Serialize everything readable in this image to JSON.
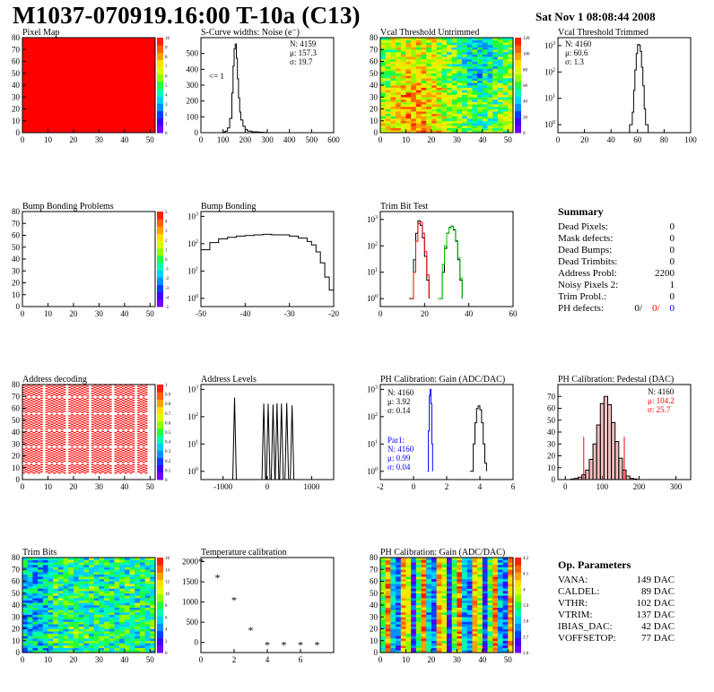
{
  "header": {
    "title": "M1037-070919.16:00 T-10a (C13)",
    "date": "Sat Nov  1 08:08:44 2008"
  },
  "colors": {
    "hist_line": "#000000",
    "red": "#ff0000",
    "green": "#00c000",
    "blue": "#0000ff",
    "pedestal_fill": "#e06060"
  },
  "panels": {
    "pixel_map": {
      "title": "Pixel Map",
      "palette_ticks": [
        "0",
        "1",
        "2",
        "3",
        "4",
        "5",
        "6",
        "7",
        "8",
        "9",
        "10"
      ],
      "fill": "#ff0000"
    },
    "scurve": {
      "title": "S-Curve widths: Noise (e⁻)",
      "stats": [
        "N: 4159",
        "μ: 157.3",
        "σ: 19.7"
      ],
      "underflow_label": "<= 1"
    },
    "vcal_untrimmed": {
      "title": "Vcal Threshold Untrimmed",
      "palette_ticks": [
        "0",
        "20",
        "40",
        "60",
        "80",
        "100",
        "120"
      ]
    },
    "vcal_trimmed": {
      "title": "Vcal Threshold Trimmed",
      "stats": [
        "N: 4160",
        "μ: 60.6",
        "σ:  1.3"
      ]
    },
    "bump_problems": {
      "title": "Bump Bonding Problems",
      "palette_ticks": [
        "-5",
        "-4",
        "-3",
        "-2",
        "-1",
        "0",
        "1",
        "2",
        "3",
        "4",
        "5"
      ]
    },
    "bump_bonding": {
      "title": "Bump Bonding"
    },
    "trim_bit_test": {
      "title": "Trim Bit Test"
    },
    "address_decoding": {
      "title": "Address decoding",
      "palette_ticks": [
        "0",
        "0.1",
        "0.2",
        "0.3",
        "0.4",
        "0.5",
        "0.6",
        "0.7",
        "0.8",
        "0.9",
        "1"
      ]
    },
    "address_levels": {
      "title": "Address Levels"
    },
    "ph_gain": {
      "title": "PH Calibration: Gain (ADC/DAC)",
      "stats": [
        "N: 4160",
        "μ: 3.92",
        "σ: 0.14"
      ],
      "par1": [
        "Par1:",
        "N: 4160",
        "μ: 0.99",
        "σ: 0.04"
      ]
    },
    "ph_pedestal": {
      "title": "PH Calibration: Pedestal (DAC)",
      "stats": [
        "N: 4160",
        "μ: 104.2",
        "σ: 25.7"
      ]
    },
    "trim_bits": {
      "title": "Trim Bits",
      "palette_ticks": [
        "0",
        "2",
        "4",
        "6",
        "8",
        "10",
        "12",
        "14",
        "16"
      ]
    },
    "temperature": {
      "title": "Temperature calibration"
    },
    "ph_gain_map": {
      "title": "PH Calibration: Gain (ADC/DAC)",
      "palette_ticks": [
        "3.6",
        "3.7",
        "3.8",
        "3.9",
        "4",
        "4.1",
        "4.2"
      ]
    }
  },
  "summary": {
    "title": "Summary",
    "rows": [
      {
        "label": "Dead Pixels:",
        "value": "0"
      },
      {
        "label": "Mask defects:",
        "value": "0"
      },
      {
        "label": "Dead Bumps:",
        "value": "0"
      },
      {
        "label": "Dead Trimbits:",
        "value": "0"
      },
      {
        "label": "Address Probl:",
        "value": "2200"
      },
      {
        "label": "Noisy Pixels 2:",
        "value": "1"
      },
      {
        "label": "Trim Probl.:",
        "value": "0"
      }
    ],
    "ph_defects": {
      "label": "PH defects:",
      "v1": "0/",
      "v2": "0/",
      "v3": "0"
    }
  },
  "op_parameters": {
    "title": "Op. Parameters",
    "rows": [
      {
        "label": "VANA:",
        "value": "149 DAC"
      },
      {
        "label": "CALDEL:",
        "value": "89 DAC"
      },
      {
        "label": "VTHR:",
        "value": "102 DAC"
      },
      {
        "label": "VTRIM:",
        "value": "137 DAC"
      },
      {
        "label": "IBIAS_DAC:",
        "value": "42 DAC"
      },
      {
        "label": "VOFFSETOP:",
        "value": "77 DAC"
      }
    ]
  },
  "chart_data": [
    {
      "id": "pixel_map",
      "type": "heatmap",
      "title": "Pixel Map",
      "xlim": [
        0,
        52
      ],
      "ylim": [
        0,
        80
      ],
      "xticks": [
        0,
        10,
        20,
        30,
        40,
        50
      ],
      "yticks": [
        0,
        10,
        20,
        30,
        40,
        50,
        60,
        70,
        80
      ],
      "value": 10,
      "zlim": [
        0,
        10
      ]
    },
    {
      "id": "scurve",
      "type": "line",
      "title": "S-Curve widths: Noise (e⁻)",
      "xlim": [
        0,
        600
      ],
      "ylim": [
        0,
        600
      ],
      "xticks": [
        0,
        100,
        200,
        300,
        400,
        500,
        600
      ],
      "yticks": [
        0,
        100,
        200,
        300,
        400,
        500
      ],
      "x": [
        0,
        80,
        100,
        110,
        120,
        130,
        140,
        145,
        150,
        155,
        160,
        165,
        170,
        175,
        180,
        190,
        200,
        210,
        230,
        260,
        280,
        300,
        600
      ],
      "y": [
        0,
        0,
        4,
        10,
        30,
        90,
        250,
        420,
        530,
        560,
        470,
        340,
        220,
        130,
        80,
        40,
        20,
        10,
        5,
        3,
        1,
        0,
        0
      ]
    },
    {
      "id": "vcal_untrimmed",
      "type": "heatmap",
      "title": "Vcal Threshold Untrimmed",
      "xlim": [
        0,
        52
      ],
      "ylim": [
        0,
        80
      ],
      "xticks": [
        0,
        10,
        20,
        30,
        40,
        50
      ],
      "yticks": [
        0,
        10,
        20,
        30,
        40,
        50,
        60,
        70,
        80
      ],
      "zlim": [
        0,
        130
      ],
      "mean": 80
    },
    {
      "id": "vcal_trimmed",
      "type": "line",
      "title": "Vcal Threshold Trimmed",
      "xlim": [
        0,
        100
      ],
      "log_y": true,
      "ylim": [
        0.5,
        2000
      ],
      "xticks": [
        0,
        20,
        40,
        60,
        80,
        100
      ],
      "yticks": [
        1,
        10,
        100,
        1000
      ],
      "x": [
        50,
        54,
        56,
        57,
        58,
        59,
        60,
        61,
        62,
        63,
        64,
        65,
        66,
        68,
        100
      ],
      "y": [
        0,
        1,
        3,
        20,
        120,
        500,
        1100,
        1050,
        600,
        150,
        30,
        4,
        1,
        0,
        0
      ]
    },
    {
      "id": "bump_problems",
      "type": "heatmap",
      "title": "Bump Bonding Problems",
      "xlim": [
        0,
        52
      ],
      "ylim": [
        0,
        80
      ],
      "xticks": [
        0,
        10,
        20,
        30,
        40,
        50
      ],
      "yticks": [
        0,
        10,
        20,
        30,
        40,
        50,
        60,
        70,
        80
      ],
      "zlim": [
        -5,
        5
      ],
      "value": null
    },
    {
      "id": "bump_bonding",
      "type": "line",
      "title": "Bump Bonding",
      "xlim": [
        -50,
        -20
      ],
      "log_y": true,
      "ylim": [
        0.5,
        1500
      ],
      "xticks": [
        -50,
        -40,
        -30,
        -20
      ],
      "yticks": [
        1,
        10,
        100,
        1000
      ],
      "x": [
        -50,
        -48,
        -46,
        -44,
        -42,
        -40,
        -38,
        -36,
        -34,
        -32,
        -30,
        -28,
        -26,
        -25,
        -24,
        -23,
        -22,
        -21,
        -20
      ],
      "y": [
        60,
        110,
        150,
        170,
        190,
        200,
        210,
        220,
        210,
        210,
        190,
        160,
        120,
        90,
        50,
        20,
        6,
        2,
        0.5
      ]
    },
    {
      "id": "trim_bit_test",
      "type": "line",
      "title": "Trim Bit Test",
      "xlim": [
        0,
        60
      ],
      "log_y": true,
      "ylim": [
        0.5,
        2000
      ],
      "xticks": [
        0,
        20,
        40,
        60
      ],
      "yticks": [
        1,
        10,
        100,
        1000
      ],
      "series": [
        {
          "name": "",
          "color": "#000000",
          "x": [
            13,
            15,
            16,
            17,
            18,
            19,
            20,
            21,
            22
          ],
          "y": [
            1,
            30,
            300,
            900,
            600,
            200,
            40,
            5,
            1
          ]
        },
        {
          "name": "",
          "color": "#ff0000",
          "x": [
            14,
            15,
            16,
            17,
            18,
            19,
            20,
            21,
            22
          ],
          "y": [
            1,
            10,
            150,
            700,
            800,
            300,
            60,
            8,
            1
          ]
        },
        {
          "name": "",
          "color": "#000000",
          "x": [
            27,
            28,
            29,
            30,
            31,
            32,
            33,
            34,
            35,
            36,
            37
          ],
          "y": [
            1,
            10,
            80,
            300,
            500,
            560,
            400,
            150,
            30,
            5,
            1
          ]
        },
        {
          "name": "",
          "color": "#00c000",
          "x": [
            26,
            28,
            29,
            30,
            31,
            32,
            33,
            34,
            35,
            36,
            37
          ],
          "y": [
            1,
            20,
            100,
            300,
            480,
            550,
            420,
            160,
            35,
            6,
            1
          ]
        }
      ]
    },
    {
      "id": "address_decoding",
      "type": "heatmap",
      "title": "Address decoding",
      "xlim": [
        0,
        52
      ],
      "ylim": [
        0,
        80
      ],
      "xticks": [
        0,
        10,
        20,
        30,
        40,
        50
      ],
      "yticks": [
        0,
        10,
        20,
        30,
        40,
        50,
        60,
        70,
        80
      ],
      "zlim": [
        0,
        1
      ]
    },
    {
      "id": "address_levels",
      "type": "line",
      "title": "Address Levels",
      "xlim": [
        -1500,
        1500
      ],
      "log_y": true,
      "ylim": [
        0.5,
        1500
      ],
      "xticks": [
        -1000,
        0,
        1000
      ],
      "peaks": [
        {
          "x": -740,
          "y": 500
        },
        {
          "x": -80,
          "y": 300
        },
        {
          "x": 20,
          "y": 300
        },
        {
          "x": 130,
          "y": 280
        },
        {
          "x": 220,
          "y": 310
        },
        {
          "x": 320,
          "y": 300
        },
        {
          "x": 440,
          "y": 320
        },
        {
          "x": 560,
          "y": 260
        }
      ]
    },
    {
      "id": "ph_gain",
      "type": "line",
      "title": "PH Calibration: Gain (ADC/DAC)",
      "xlim": [
        -2,
        6
      ],
      "log_y": true,
      "ylim": [
        0.5,
        1500
      ],
      "xticks": [
        -2,
        0,
        2,
        4,
        6
      ],
      "series": [
        {
          "name": "",
          "color": "#000000",
          "x": [
            3.4,
            3.6,
            3.7,
            3.8,
            3.9,
            4.0,
            4.1,
            4.2,
            4.3,
            4.4
          ],
          "y": [
            1,
            10,
            60,
            200,
            250,
            180,
            60,
            10,
            2,
            1
          ]
        },
        {
          "name": "Par1",
          "color": "#0000ff",
          "x": [
            0.85,
            0.9,
            0.95,
            1.0,
            1.05,
            1.1,
            1.15
          ],
          "y": [
            1,
            30,
            600,
            1000,
            300,
            10,
            1
          ]
        }
      ]
    },
    {
      "id": "ph_pedestal",
      "type": "bar",
      "title": "PH Calibration: Pedestal (DAC)",
      "xlim": [
        -20,
        340
      ],
      "ylim": [
        0,
        80
      ],
      "xticks": [
        0,
        100,
        200,
        300
      ],
      "yticks": [
        0,
        10,
        20,
        30,
        40,
        50,
        60,
        70
      ],
      "x": [
        20,
        30,
        40,
        50,
        60,
        70,
        80,
        90,
        100,
        110,
        120,
        130,
        140,
        150,
        160,
        170,
        180,
        190
      ],
      "y": [
        0.5,
        1,
        2,
        4,
        8,
        17,
        30,
        46,
        64,
        70,
        63,
        48,
        32,
        18,
        8,
        3,
        1,
        0.5
      ],
      "cut_lines": [
        50,
        160
      ]
    },
    {
      "id": "trim_bits",
      "type": "heatmap",
      "title": "Trim Bits",
      "xlim": [
        0,
        52
      ],
      "ylim": [
        0,
        80
      ],
      "xticks": [
        0,
        10,
        20,
        30,
        40,
        50
      ],
      "yticks": [
        0,
        10,
        20,
        30,
        40,
        50,
        60,
        70,
        80
      ],
      "zlim": [
        0,
        16
      ]
    },
    {
      "id": "temperature",
      "type": "scatter",
      "title": "Temperature calibration",
      "xlim": [
        0,
        8
      ],
      "ylim": [
        -250,
        2100
      ],
      "xticks": [
        0,
        2,
        4,
        6
      ],
      "yticks": [
        0,
        500,
        1000,
        1500,
        2000
      ],
      "x": [
        0,
        1,
        2,
        3,
        4,
        5,
        6,
        7
      ],
      "y": [
        2000,
        1600,
        1050,
        300,
        -60,
        -60,
        -60,
        -60
      ]
    },
    {
      "id": "ph_gain_map",
      "type": "heatmap",
      "title": "PH Calibration: Gain (ADC/DAC)",
      "xlim": [
        0,
        52
      ],
      "ylim": [
        0,
        80
      ],
      "xticks": [
        0,
        10,
        20,
        30,
        40,
        50
      ],
      "yticks": [
        0,
        10,
        20,
        30,
        40,
        50,
        60,
        70,
        80
      ],
      "zlim": [
        3.6,
        4.25
      ]
    }
  ]
}
